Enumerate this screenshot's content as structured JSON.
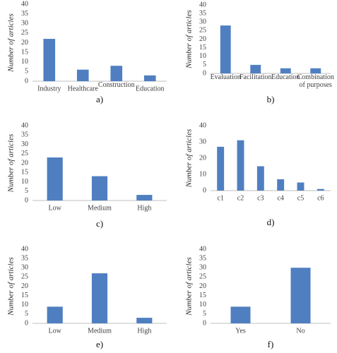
{
  "chart_data": [
    {
      "type": "bar",
      "caption": "a)",
      "y_label": "Number of articles",
      "categories": [
        "Industry",
        "Healthcare",
        "Construction",
        "Education"
      ],
      "values": [
        22,
        6,
        8,
        3
      ],
      "color": "#4f7fc0",
      "ylim": [
        0,
        40
      ],
      "yticks": [
        0,
        5,
        10,
        15,
        20,
        25,
        30,
        35,
        40
      ],
      "grid": false
    },
    {
      "type": "bar",
      "caption": "b)",
      "y_label": "Number of articles",
      "categories": [
        "Evaluation",
        "Facilitation",
        "Education",
        "Combination of purposes"
      ],
      "values": [
        28,
        5,
        3,
        3
      ],
      "color": "#4f7fc0",
      "ylim": [
        0,
        40
      ],
      "yticks": [
        0,
        5,
        10,
        15,
        20,
        25,
        30,
        35,
        40
      ],
      "grid": false
    },
    {
      "type": "bar",
      "caption": "c)",
      "y_label": "Number of articles",
      "categories": [
        "Low",
        "Medium",
        "High"
      ],
      "values": [
        23,
        13,
        3
      ],
      "color": "#4f7fc0",
      "ylim": [
        0,
        40
      ],
      "yticks": [
        0,
        5,
        10,
        15,
        20,
        25,
        30,
        35,
        40
      ],
      "grid": false
    },
    {
      "type": "bar",
      "caption": "d)",
      "y_label": "Number of articles",
      "categories": [
        "c1",
        "c2",
        "c3",
        "c4",
        "c5",
        "c6"
      ],
      "values": [
        27,
        31,
        15,
        7,
        5,
        1
      ],
      "color": "#4f7fc0",
      "ylim": [
        0,
        40
      ],
      "yticks": [
        0,
        10,
        20,
        30,
        40
      ],
      "grid": false
    },
    {
      "type": "bar",
      "caption": "e)",
      "y_label": "Number of articles",
      "categories": [
        "Low",
        "Medium",
        "High"
      ],
      "values": [
        9,
        27,
        3
      ],
      "color": "#4f7fc0",
      "ylim": [
        0,
        40
      ],
      "yticks": [
        0,
        5,
        10,
        15,
        20,
        25,
        30,
        35,
        40
      ],
      "grid": false
    },
    {
      "type": "bar",
      "caption": "f)",
      "y_label": "Number of articles",
      "categories": [
        "Yes",
        "No"
      ],
      "values": [
        9,
        30
      ],
      "color": "#4f7fc0",
      "ylim": [
        0,
        40
      ],
      "yticks": [
        0,
        5,
        10,
        15,
        20,
        25,
        30,
        35,
        40
      ],
      "grid": false
    }
  ]
}
